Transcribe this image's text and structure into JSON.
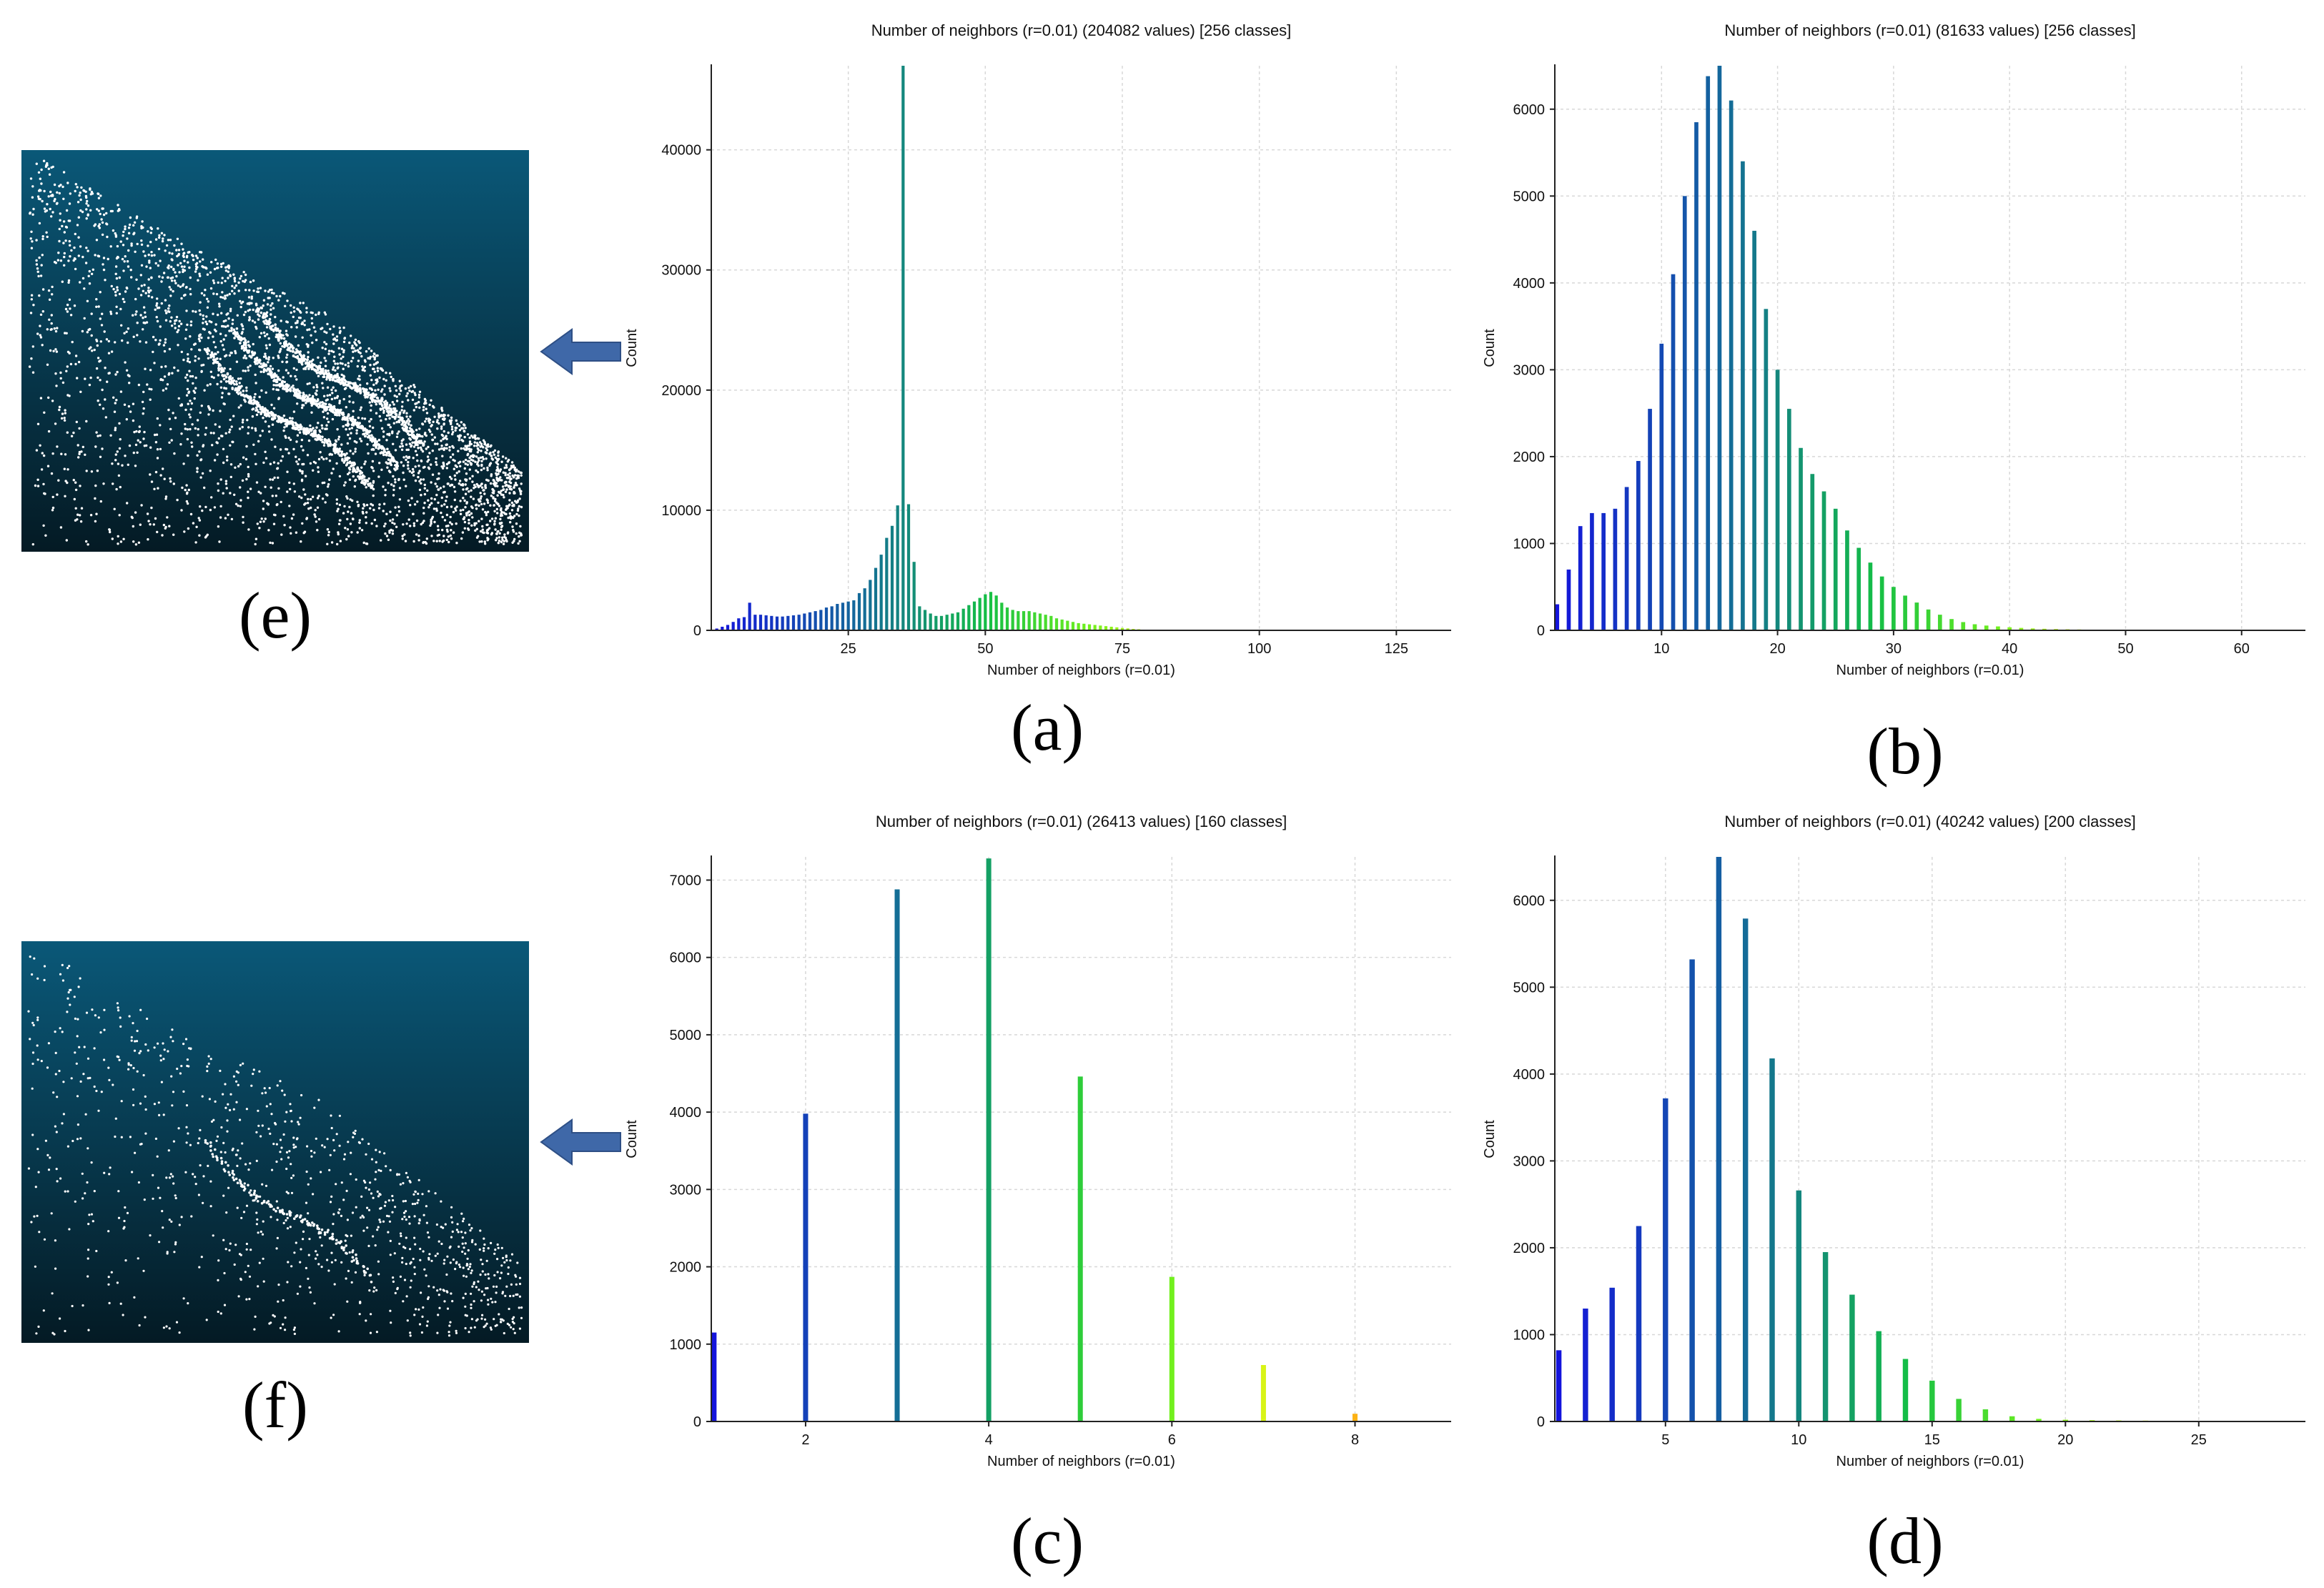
{
  "labels": {
    "a": "(a)",
    "b": "(b)",
    "c": "(c)",
    "d": "(d)",
    "e": "(e)",
    "f": "(f)"
  },
  "pointclouds": [
    {
      "id": "e",
      "colors": {
        "top": "#0a5878",
        "bottom": "#041a24",
        "points": "#ffffff"
      },
      "density": "dense"
    },
    {
      "id": "f",
      "colors": {
        "top": "#0a5878",
        "bottom": "#041a24",
        "points": "#ffffff"
      },
      "density": "sparse"
    }
  ],
  "arrow_color": "#3f68a8",
  "chart_data": [
    {
      "id": "a",
      "type": "bar",
      "title": "Number of neighbors (r=0.01) (204082 values)  [256 classes]",
      "xlabel": "Number of neighbors (r=0.01)",
      "ylabel": "Count",
      "xlim": [
        0,
        135
      ],
      "ylim": [
        0,
        47000
      ],
      "xticks": [
        25,
        50,
        75,
        100,
        125
      ],
      "yticks": [
        0,
        10000,
        20000,
        30000,
        40000
      ],
      "grid": true,
      "bar_width": 0.55,
      "x": [
        1,
        2,
        3,
        4,
        5,
        6,
        7,
        8,
        9,
        10,
        11,
        12,
        13,
        14,
        15,
        16,
        17,
        18,
        19,
        20,
        21,
        22,
        23,
        24,
        25,
        26,
        27,
        28,
        29,
        30,
        31,
        32,
        33,
        34,
        35,
        36,
        37,
        38,
        39,
        40,
        41,
        42,
        43,
        44,
        45,
        46,
        47,
        48,
        49,
        50,
        51,
        52,
        53,
        54,
        55,
        56,
        57,
        58,
        59,
        60,
        61,
        62,
        63,
        64,
        65,
        66,
        67,
        68,
        69,
        70,
        71,
        72,
        73,
        74,
        75,
        76,
        77,
        78,
        79,
        80,
        81,
        82,
        83,
        84,
        85
      ],
      "values": [
        150,
        300,
        450,
        700,
        1000,
        1100,
        2300,
        1300,
        1300,
        1250,
        1200,
        1150,
        1150,
        1200,
        1250,
        1300,
        1400,
        1500,
        1600,
        1700,
        1900,
        2000,
        2200,
        2300,
        2400,
        2500,
        3100,
        3500,
        4200,
        5200,
        6300,
        7700,
        8700,
        10400,
        47000,
        10500,
        5700,
        2000,
        1700,
        1400,
        1200,
        1200,
        1300,
        1400,
        1500,
        1800,
        2100,
        2400,
        2700,
        3000,
        3200,
        2900,
        2300,
        1900,
        1700,
        1600,
        1600,
        1600,
        1500,
        1400,
        1300,
        1200,
        1000,
        900,
        800,
        700,
        600,
        550,
        500,
        450,
        400,
        350,
        300,
        250,
        200,
        160,
        120,
        90,
        60,
        40,
        30,
        20,
        15,
        10,
        5
      ]
    },
    {
      "id": "b",
      "type": "bar",
      "title": "Number of neighbors (r=0.01) (81633 values)  [256 classes]",
      "xlabel": "Number of neighbors (r=0.01)",
      "ylabel": "Count",
      "xlim": [
        0.8,
        65.5
      ],
      "ylim": [
        0,
        6500
      ],
      "xticks": [
        10,
        20,
        30,
        40,
        50,
        60
      ],
      "yticks": [
        0,
        1000,
        2000,
        3000,
        4000,
        5000,
        6000
      ],
      "grid": true,
      "bar_width": 0.35,
      "x": [
        1,
        2,
        3,
        4,
        5,
        6,
        7,
        8,
        9,
        10,
        11,
        12,
        13,
        14,
        15,
        16,
        17,
        18,
        19,
        20,
        21,
        22,
        23,
        24,
        25,
        26,
        27,
        28,
        29,
        30,
        31,
        32,
        33,
        34,
        35,
        36,
        37,
        38,
        39,
        40,
        41,
        42,
        43,
        44,
        45,
        46,
        47,
        48,
        49,
        50,
        51,
        52,
        53,
        54,
        55,
        56,
        57,
        58,
        59,
        60,
        61,
        62
      ],
      "values": [
        300,
        700,
        1200,
        1350,
        1350,
        1400,
        1650,
        1950,
        2550,
        3300,
        4100,
        5000,
        5850,
        6380,
        6500,
        6100,
        5400,
        4600,
        3700,
        3000,
        2550,
        2100,
        1800,
        1600,
        1400,
        1150,
        950,
        780,
        620,
        500,
        400,
        320,
        240,
        180,
        130,
        95,
        70,
        55,
        45,
        35,
        28,
        22,
        18,
        15,
        12,
        10,
        8,
        7,
        6,
        5,
        4,
        4,
        3,
        3,
        2,
        2,
        2,
        1,
        1,
        1,
        1,
        1
      ]
    },
    {
      "id": "c",
      "type": "bar",
      "title": "Number of neighbors (r=0.01) (26413 values)  [160 classes]",
      "xlabel": "Number of neighbors (r=0.01)",
      "ylabel": "Count",
      "xlim": [
        0.97,
        9.05
      ],
      "ylim": [
        0,
        7300
      ],
      "xticks": [
        2,
        4,
        6,
        8
      ],
      "yticks": [
        0,
        1000,
        2000,
        3000,
        4000,
        5000,
        6000,
        7000
      ],
      "grid": true,
      "bar_width": 0.055,
      "x": [
        1,
        2,
        3,
        4,
        5,
        6,
        7,
        8
      ],
      "values": [
        1150,
        3980,
        6880,
        7280,
        4460,
        1870,
        730,
        100
      ]
    },
    {
      "id": "d",
      "type": "bar",
      "title": "Number of neighbors (r=0.01) (40242 values)  [200 classes]",
      "xlabel": "Number of neighbors (r=0.01)",
      "ylabel": "Count",
      "xlim": [
        0.85,
        29
      ],
      "ylim": [
        0,
        6500
      ],
      "xticks": [
        5,
        10,
        15,
        20,
        25
      ],
      "yticks": [
        0,
        1000,
        2000,
        3000,
        4000,
        5000,
        6000
      ],
      "grid": true,
      "bar_width": 0.2,
      "x": [
        1,
        2,
        3,
        4,
        5,
        6,
        7,
        8,
        9,
        10,
        11,
        12,
        13,
        14,
        15,
        16,
        17,
        18,
        19,
        20,
        21,
        22,
        23,
        24,
        25,
        26,
        27
      ],
      "values": [
        820,
        1300,
        1540,
        2250,
        3720,
        5320,
        6500,
        5790,
        4180,
        2660,
        1950,
        1460,
        1040,
        720,
        470,
        260,
        140,
        60,
        30,
        20,
        15,
        12,
        10,
        8,
        6,
        5,
        4
      ]
    }
  ]
}
